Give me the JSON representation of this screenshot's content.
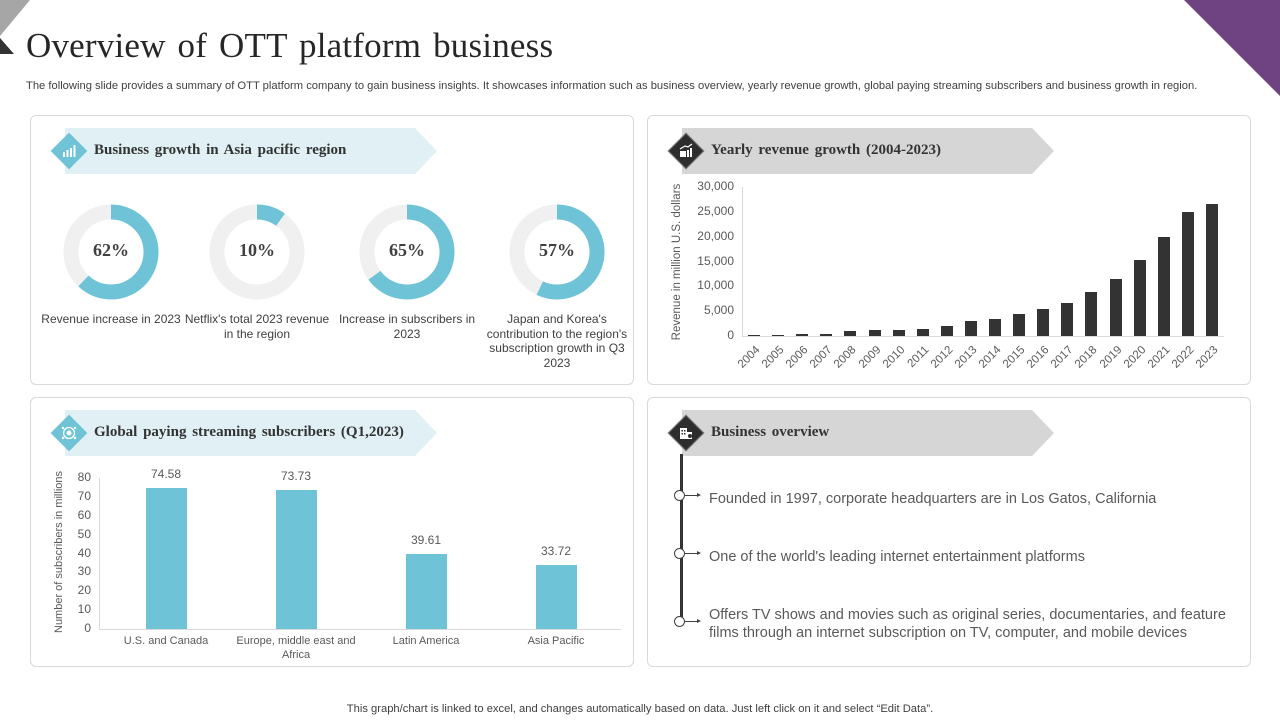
{
  "header": {
    "title": "Overview of OTT platform business",
    "subtitle": "The following slide provides a summary of OTT platform company to gain business insights. It showcases information such as business overview, yearly revenue growth, global paying streaming subscribers and business growth in region."
  },
  "colors": {
    "accent_blue": "#6ec4d6",
    "ribbon_blue_bg": "#e1f0f5",
    "ribbon_gray_bg": "#d6d6d6",
    "dark_bar": "#333333",
    "donut_track": "#f0f0f0",
    "corner_purple": "#6f4381"
  },
  "asia_pacific": {
    "heading": "Business growth in Asia pacific region",
    "icon": "bar-chart-growth-icon",
    "metrics": [
      {
        "value": "62%",
        "percent": 62,
        "caption": "Revenue increase in 2023"
      },
      {
        "value": "10%",
        "percent": 10,
        "caption": "Netflix's total 2023 revenue in the region"
      },
      {
        "value": "65%",
        "percent": 65,
        "caption": "Increase in subscribers in 2023"
      },
      {
        "value": "57%",
        "percent": 57,
        "caption": "Japan and Korea's contribution to the region's subscription growth in Q3 2023"
      }
    ]
  },
  "yearly": {
    "heading": "Yearly revenue growth (2004-2023)",
    "icon": "money-growth-icon"
  },
  "subscribers": {
    "heading": "Global paying streaming subscribers (Q1,2023)",
    "icon": "globe-subscribers-icon"
  },
  "overview": {
    "heading": "Business overview",
    "icon": "buildings-icon",
    "items": [
      "Founded in 1997, corporate headquarters are in Los Gatos, California",
      "One of the world's leading internet entertainment platforms",
      "Offers TV shows and movies such as original series, documentaries, and feature films through an internet subscription on TV, computer, and mobile devices"
    ]
  },
  "footer": {
    "note": "This graph/chart is linked to excel, and changes automatically based on data. Just left click on it and select “Edit Data”."
  },
  "chart_data": [
    {
      "type": "pie",
      "title": "Business growth in Asia pacific region",
      "categories": [
        "Revenue increase in 2023",
        "Netflix's total 2023 revenue in the region",
        "Increase in subscribers in 2023",
        "Japan and Korea's contribution to the region's subscription growth in Q3 2023"
      ],
      "values": [
        62,
        10,
        65,
        57
      ],
      "note": "Four donut gauges, percent of 100"
    },
    {
      "type": "bar",
      "title": "Yearly revenue growth (2004-2023)",
      "xlabel": "",
      "ylabel": "Revenue in million U.S. dollars",
      "ylim": [
        0,
        30000
      ],
      "yticks": [
        "0",
        "5,000",
        "10,000",
        "15,000",
        "20,000",
        "25,000",
        "30,000"
      ],
      "categories": [
        "2004",
        "2005",
        "2006",
        "2007",
        "2008",
        "2009",
        "2010",
        "2011",
        "2012",
        "2013",
        "2014",
        "2015",
        "2016",
        "2017",
        "2018",
        "2019",
        "2020",
        "2021",
        "2022",
        "2023"
      ],
      "values": [
        200,
        270,
        500,
        500,
        1000,
        1200,
        1200,
        1400,
        2000,
        3000,
        3400,
        4400,
        5400,
        6600,
        8800,
        11400,
        15400,
        20000,
        24900,
        26500
      ],
      "grid": false
    },
    {
      "type": "bar",
      "title": "Global paying streaming subscribers (Q1,2023)",
      "xlabel": "",
      "ylabel": "Number of subscribers in millions",
      "ylim": [
        0,
        80
      ],
      "yticks": [
        "0",
        "10",
        "20",
        "30",
        "40",
        "50",
        "60",
        "70",
        "80"
      ],
      "categories": [
        "U.S. and Canada",
        "Europe, middle east and Africa",
        "Latin America",
        "Asia Pacific"
      ],
      "values": [
        74.58,
        73.73,
        39.61,
        33.72
      ],
      "value_labels": [
        "74.58",
        "73.73",
        "39.61",
        "33.72"
      ],
      "grid": false
    }
  ]
}
